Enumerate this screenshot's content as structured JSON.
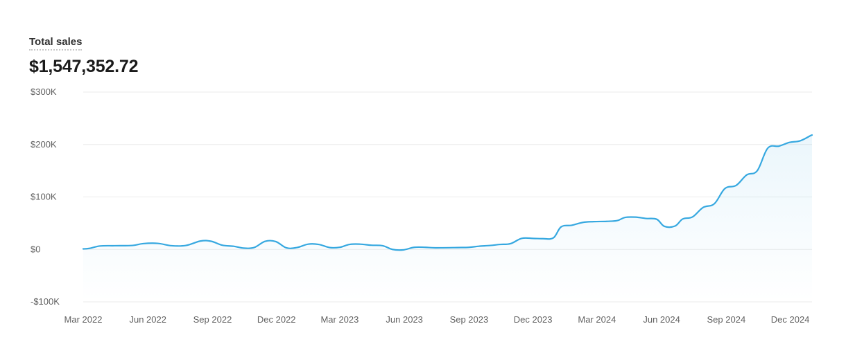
{
  "metric": {
    "label": "Total sales",
    "value": "$1,547,352.72"
  },
  "colors": {
    "line": "#36a8e0",
    "grid": "#ebebeb",
    "tick": "#616161"
  },
  "chart_data": {
    "type": "area",
    "title": "",
    "xlabel": "",
    "ylabel": "",
    "grid": true,
    "ylim": [
      -100000,
      300000
    ],
    "y_ticks": [
      {
        "value": 300000,
        "label": "$300K"
      },
      {
        "value": 200000,
        "label": "$200K"
      },
      {
        "value": 100000,
        "label": "$100K"
      },
      {
        "value": 0,
        "label": "$0"
      },
      {
        "value": -100000,
        "label": "-$100K"
      }
    ],
    "x_ticks": [
      "Mar 2022",
      "Jun 2022",
      "Sep 2022",
      "Dec 2022",
      "Mar 2023",
      "Jun 2023",
      "Sep 2023",
      "Dec 2023",
      "Mar 2024",
      "Jun 2024",
      "Sep 2024",
      "Dec 2024"
    ],
    "x_range": [
      "2022-03-01",
      "2025-01-01"
    ],
    "series": [
      {
        "points": [
          [
            "2022-03-01",
            1000
          ],
          [
            "2022-03-10",
            2000
          ],
          [
            "2022-03-25",
            6500
          ],
          [
            "2022-04-15",
            7000
          ],
          [
            "2022-05-10",
            7500
          ],
          [
            "2022-05-25",
            11000
          ],
          [
            "2022-06-15",
            11500
          ],
          [
            "2022-07-05",
            7000
          ],
          [
            "2022-07-25",
            7500
          ],
          [
            "2022-08-15",
            16000
          ],
          [
            "2022-08-30",
            15500
          ],
          [
            "2022-09-15",
            8000
          ],
          [
            "2022-10-01",
            6000
          ],
          [
            "2022-10-15",
            2500
          ],
          [
            "2022-10-30",
            3500
          ],
          [
            "2022-11-15",
            15500
          ],
          [
            "2022-11-30",
            15000
          ],
          [
            "2022-12-15",
            3000
          ],
          [
            "2022-12-30",
            3500
          ],
          [
            "2023-01-15",
            10000
          ],
          [
            "2023-01-30",
            9500
          ],
          [
            "2023-02-15",
            3500
          ],
          [
            "2023-03-01",
            4000
          ],
          [
            "2023-03-15",
            9500
          ],
          [
            "2023-03-30",
            10000
          ],
          [
            "2023-04-15",
            8000
          ],
          [
            "2023-05-01",
            7000
          ],
          [
            "2023-05-15",
            0
          ],
          [
            "2023-05-30",
            -1000
          ],
          [
            "2023-06-15",
            4000
          ],
          [
            "2023-07-01",
            4000
          ],
          [
            "2023-07-15",
            3000
          ],
          [
            "2023-08-15",
            3500
          ],
          [
            "2023-09-01",
            4000
          ],
          [
            "2023-09-15",
            6000
          ],
          [
            "2023-10-01",
            7500
          ],
          [
            "2023-10-15",
            9500
          ],
          [
            "2023-10-30",
            11000
          ],
          [
            "2023-11-15",
            21000
          ],
          [
            "2023-12-01",
            21000
          ],
          [
            "2023-12-15",
            20500
          ],
          [
            "2023-12-30",
            22000
          ],
          [
            "2024-01-10",
            43000
          ],
          [
            "2024-01-25",
            46000
          ],
          [
            "2024-02-10",
            51500
          ],
          [
            "2024-02-25",
            53000
          ],
          [
            "2024-03-15",
            53500
          ],
          [
            "2024-03-30",
            55000
          ],
          [
            "2024-04-10",
            61000
          ],
          [
            "2024-04-25",
            61500
          ],
          [
            "2024-05-10",
            59000
          ],
          [
            "2024-05-25",
            57500
          ],
          [
            "2024-06-05",
            44000
          ],
          [
            "2024-06-20",
            44500
          ],
          [
            "2024-07-01",
            58000
          ],
          [
            "2024-07-15",
            62000
          ],
          [
            "2024-07-30",
            80000
          ],
          [
            "2024-08-15",
            87000
          ],
          [
            "2024-08-30",
            116000
          ],
          [
            "2024-09-15",
            122000
          ],
          [
            "2024-09-30",
            142000
          ],
          [
            "2024-10-15",
            150000
          ],
          [
            "2024-10-30",
            193000
          ],
          [
            "2024-11-15",
            197000
          ],
          [
            "2024-11-30",
            204000
          ],
          [
            "2024-12-15",
            207000
          ],
          [
            "2024-12-30",
            217000
          ],
          [
            "2025-01-01",
            218000
          ]
        ]
      }
    ]
  }
}
